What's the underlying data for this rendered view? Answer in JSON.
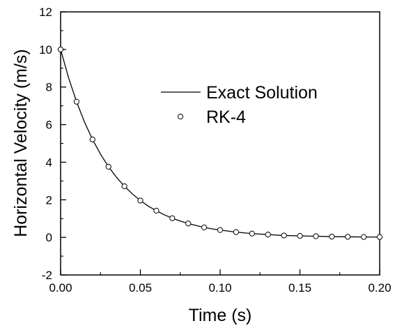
{
  "chart_data": {
    "type": "line",
    "title": "",
    "xlabel": "Time (s)",
    "ylabel": "Horizontal Velocity (m/s)",
    "xlim": [
      0,
      0.2
    ],
    "ylim": [
      -2,
      12
    ],
    "xticks": [
      "0.00",
      "0.05",
      "0.10",
      "0.15",
      "0.20"
    ],
    "yticks": [
      "-2",
      "0",
      "2",
      "4",
      "6",
      "8",
      "10",
      "12"
    ],
    "grid": false,
    "legend_position": "center-right",
    "series": [
      {
        "name": "Exact Solution",
        "style": "line",
        "color": "#000000",
        "x": [
          0.0,
          0.005,
          0.01,
          0.015,
          0.02,
          0.025,
          0.03,
          0.035,
          0.04,
          0.045,
          0.05,
          0.055,
          0.06,
          0.065,
          0.07,
          0.075,
          0.08,
          0.085,
          0.09,
          0.095,
          0.1,
          0.11,
          0.12,
          0.13,
          0.14,
          0.15,
          0.16,
          0.17,
          0.18,
          0.19,
          0.2
        ],
        "y": [
          10.0,
          8.49,
          7.22,
          6.13,
          5.21,
          4.43,
          3.76,
          3.2,
          2.72,
          2.31,
          1.96,
          1.66,
          1.42,
          1.2,
          1.02,
          0.87,
          0.74,
          0.63,
          0.53,
          0.45,
          0.39,
          0.28,
          0.2,
          0.15,
          0.1,
          0.08,
          0.06,
          0.04,
          0.03,
          0.02,
          0.02
        ]
      },
      {
        "name": "RK-4",
        "style": "marker",
        "marker": "circle-open",
        "color": "#000000",
        "x": [
          0.0,
          0.01,
          0.02,
          0.03,
          0.04,
          0.05,
          0.06,
          0.07,
          0.08,
          0.09,
          0.1,
          0.11,
          0.12,
          0.13,
          0.14,
          0.15,
          0.16,
          0.17,
          0.18,
          0.19,
          0.2
        ],
        "y": [
          10.0,
          7.22,
          5.21,
          3.76,
          2.72,
          1.96,
          1.42,
          1.02,
          0.74,
          0.53,
          0.39,
          0.28,
          0.2,
          0.15,
          0.1,
          0.08,
          0.06,
          0.04,
          0.03,
          0.02,
          0.02
        ]
      }
    ]
  }
}
